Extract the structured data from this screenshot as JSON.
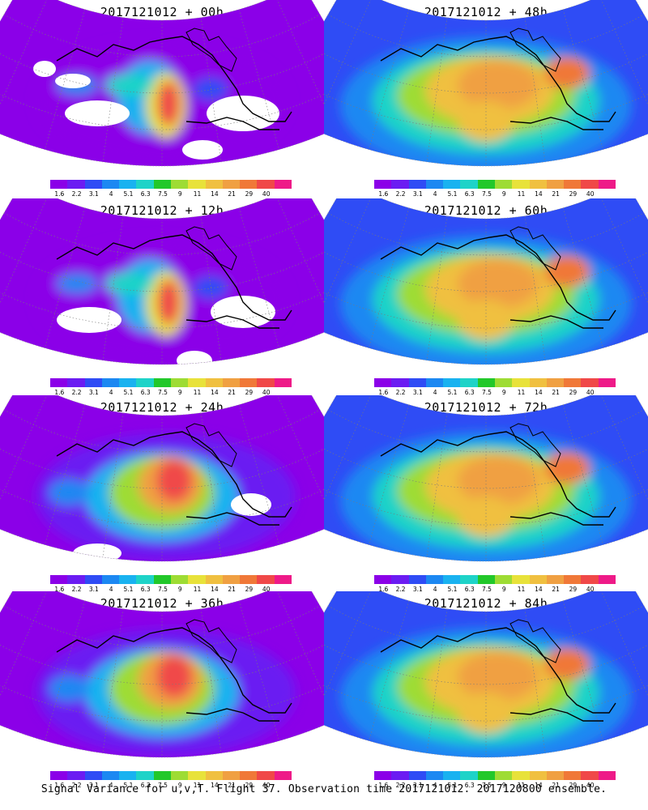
{
  "panels": [
    {
      "title": "2017121012 + 00h",
      "stage": 0
    },
    {
      "title": "2017121012 + 48h",
      "stage": 4
    },
    {
      "title": "2017121012 + 12h",
      "stage": 1
    },
    {
      "title": "2017121012 + 60h",
      "stage": 5
    },
    {
      "title": "2017121012 + 24h",
      "stage": 2
    },
    {
      "title": "2017121012 + 72h",
      "stage": 6
    },
    {
      "title": "2017121012 + 36h",
      "stage": 3
    },
    {
      "title": "2017121012 + 84h",
      "stage": 7
    }
  ],
  "colorbar": {
    "labels": [
      "1.6",
      "2.2",
      "3.1",
      "4",
      "5.1",
      "6.3",
      "7.5",
      "9",
      "11",
      "14",
      "21",
      "29",
      "40"
    ],
    "colors": [
      "#8b00e8",
      "#6b1cf2",
      "#2f4cf5",
      "#1c88f2",
      "#19b2f0",
      "#1ed3c8",
      "#22c82a",
      "#9edc34",
      "#e8e23a",
      "#f0c040",
      "#f0a042",
      "#f07838",
      "#f04848",
      "#ee1a88"
    ]
  },
  "footer": "Signal Variance for u,v,T. Flight 37. Observation time 2017121012. 2017120800 ensemble."
}
